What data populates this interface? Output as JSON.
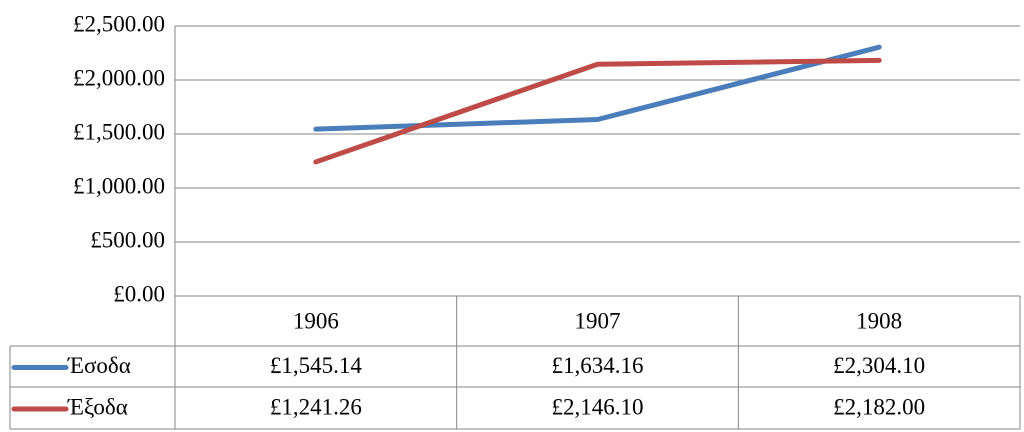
{
  "chart_data": {
    "type": "line",
    "categories": [
      "1906",
      "1907",
      "1908"
    ],
    "series": [
      {
        "name": "Έσοδα",
        "color": "#4a7ebb",
        "values": [
          1545.14,
          1634.16,
          2304.1
        ],
        "value_labels": [
          "£1,545.14",
          "£1,634.16",
          "£2,304.10"
        ]
      },
      {
        "name": "Έξοδα",
        "color": "#be4b48",
        "values": [
          1241.26,
          2146.1,
          2182.0
        ],
        "value_labels": [
          "£1,241.26",
          "£2,146.10",
          "£2,182.00"
        ]
      }
    ],
    "ylim": [
      0,
      2500
    ],
    "yticks": [
      {
        "value": 0,
        "label": "£0.00"
      },
      {
        "value": 500,
        "label": "£500.00"
      },
      {
        "value": 1000,
        "label": "£1,000.00"
      },
      {
        "value": 1500,
        "label": "£1,500.00"
      },
      {
        "value": 2000,
        "label": "£2,000.00"
      },
      {
        "value": 2500,
        "label": "£2,500.00"
      }
    ],
    "grid": true,
    "data_table": true
  }
}
